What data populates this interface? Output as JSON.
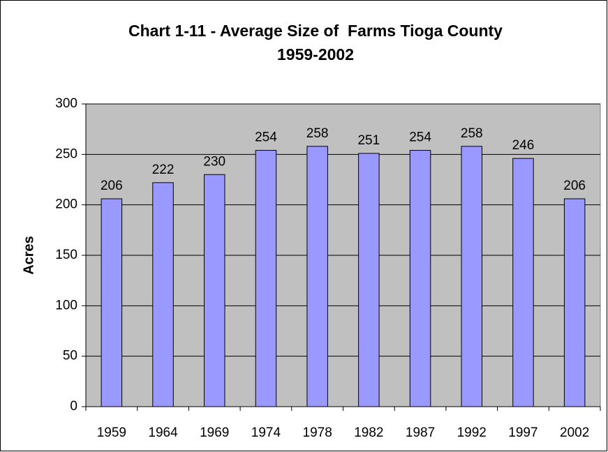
{
  "chart_data": {
    "type": "bar",
    "title": [
      "Chart 1-11 - Average Size of  Farms Tioga County",
      "1959-2002"
    ],
    "y_label": "Acres",
    "categories": [
      "1959",
      "1964",
      "1969",
      "1974",
      "1978",
      "1982",
      "1987",
      "1992",
      "1997",
      "2002"
    ],
    "values": [
      206,
      222,
      230,
      254,
      258,
      251,
      254,
      258,
      246,
      206
    ],
    "color": "#9999ff",
    "ylim": [
      0,
      300
    ],
    "yticks": [
      0,
      50,
      100,
      150,
      200,
      250,
      300
    ],
    "grid": true
  }
}
